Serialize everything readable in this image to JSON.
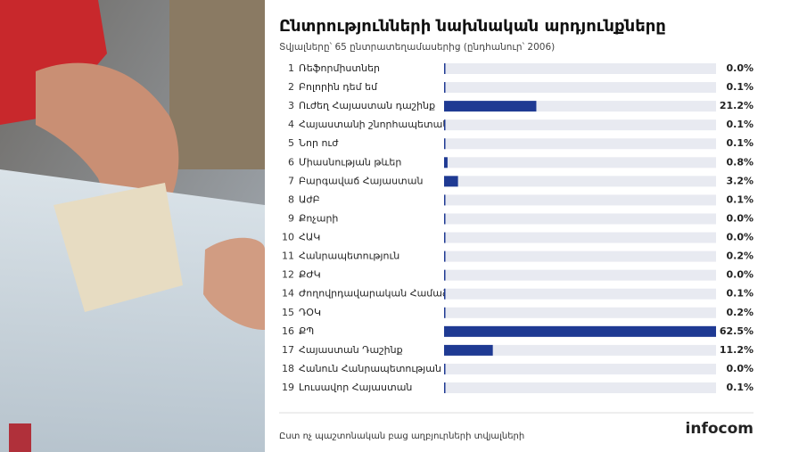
{
  "chart_data": {
    "type": "bar",
    "title": "Ընտրությունների նախնական արդյունքները",
    "subtitle": "Տվյալները՝ 65 ընտրատեղամասերից (ընդհանուր՝ 2006)",
    "ranks": [
      1,
      2,
      3,
      4,
      5,
      6,
      7,
      8,
      9,
      10,
      11,
      12,
      14,
      15,
      16,
      17,
      18,
      19
    ],
    "categories": [
      "Ռեֆորմիստներ",
      "Բոլորին դեմ եմ",
      "Ուժեղ Հայաստան դաշինք",
      "Հայաստանի շնորհապետակ",
      "Նոր ուժ",
      "Միասնության թևեր",
      "Բարգավաճ Հայաստան",
      "ԱժԲ",
      "Քոչարի",
      "ՀԱԿ",
      "Հանրապետություն",
      "ՔԺԿ",
      "Ժողովրդավարական Համաձ",
      "ԴՕԿ",
      "ՔՊ",
      "Հայաստան Դաշինք",
      "Հանուն Հանրապետության",
      "Լուսավոր Հայաստան"
    ],
    "values": [
      0.0,
      0.1,
      21.2,
      0.1,
      0.1,
      0.8,
      3.2,
      0.1,
      0.0,
      0.0,
      0.2,
      0.0,
      0.1,
      0.2,
      62.5,
      11.2,
      0.0,
      0.1
    ],
    "value_labels": [
      "0.0%",
      "0.1%",
      "21.2%",
      "0.1%",
      "0.1%",
      "0.8%",
      "3.2%",
      "0.1%",
      "0.0%",
      "0.0%",
      "0.2%",
      "0.0%",
      "0.1%",
      "0.2%",
      "62.5%",
      "11.2%",
      "0.0%",
      "0.1%"
    ],
    "xlim": [
      0,
      62.5
    ],
    "color": "#1f3a93",
    "track_color": "#e8eaf1",
    "source": "Ըստ ոչ պաշտոնական բաց աղբյուրների տվյալների",
    "logo": "infocom"
  }
}
